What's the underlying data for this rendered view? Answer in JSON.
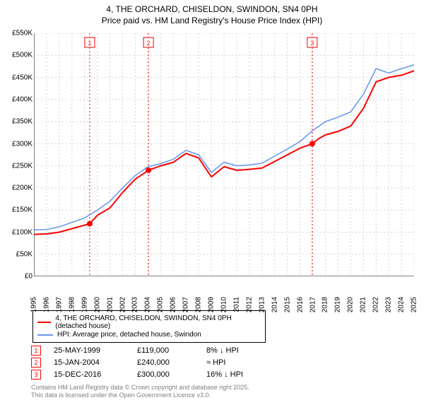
{
  "title": {
    "line1": "4, THE ORCHARD, CHISELDON, SWINDON, SN4 0PH",
    "line2": "Price paid vs. HM Land Registry's House Price Index (HPI)"
  },
  "chart": {
    "type": "line",
    "background_color": "#ffffff",
    "grid_color": "#d3d3d3",
    "grid_dash": "2,3",
    "axis_color": "#000000",
    "label_fontsize": 10,
    "x": {
      "min": 1995,
      "max": 2025,
      "tick_step": 1,
      "ticks": [
        1995,
        1996,
        1997,
        1998,
        1999,
        2000,
        2001,
        2002,
        2003,
        2004,
        2005,
        2006,
        2007,
        2008,
        2009,
        2010,
        2011,
        2012,
        2013,
        2014,
        2015,
        2016,
        2017,
        2018,
        2019,
        2020,
        2021,
        2022,
        2023,
        2024,
        2025
      ]
    },
    "y": {
      "min": 0,
      "max": 550,
      "tick_step": 50,
      "unit_suffix": "K",
      "unit_prefix": "£",
      "ticks": [
        0,
        50,
        100,
        150,
        200,
        250,
        300,
        350,
        400,
        450,
        500,
        550
      ]
    },
    "series": [
      {
        "name": "price_paid",
        "label": "4, THE ORCHARD, CHISELDON, SWINDON, SN4 0PH (detached house)",
        "color": "#ff0000",
        "line_width": 2,
        "points": [
          [
            1995,
            95
          ],
          [
            1996,
            96
          ],
          [
            1997,
            100
          ],
          [
            1998,
            108
          ],
          [
            1999.4,
            119
          ],
          [
            2000,
            138
          ],
          [
            2001,
            155
          ],
          [
            2002,
            190
          ],
          [
            2003,
            220
          ],
          [
            2004.04,
            240
          ],
          [
            2005,
            250
          ],
          [
            2006,
            258
          ],
          [
            2007,
            278
          ],
          [
            2008,
            268
          ],
          [
            2009,
            225
          ],
          [
            2010,
            248
          ],
          [
            2011,
            240
          ],
          [
            2012,
            242
          ],
          [
            2013,
            245
          ],
          [
            2014,
            260
          ],
          [
            2015,
            275
          ],
          [
            2016,
            290
          ],
          [
            2016.96,
            300
          ],
          [
            2017.5,
            312
          ],
          [
            2018,
            320
          ],
          [
            2019,
            328
          ],
          [
            2020,
            340
          ],
          [
            2021,
            380
          ],
          [
            2022,
            440
          ],
          [
            2023,
            450
          ],
          [
            2024,
            455
          ],
          [
            2025,
            465
          ]
        ]
      },
      {
        "name": "hpi",
        "label": "HPI: Average price, detached house, Swindon",
        "color": "#6495ed",
        "line_width": 1.5,
        "points": [
          [
            1995,
            105
          ],
          [
            1996,
            106
          ],
          [
            1997,
            112
          ],
          [
            1998,
            122
          ],
          [
            1999,
            132
          ],
          [
            2000,
            150
          ],
          [
            2001,
            170
          ],
          [
            2002,
            200
          ],
          [
            2003,
            228
          ],
          [
            2004,
            248
          ],
          [
            2005,
            255
          ],
          [
            2006,
            265
          ],
          [
            2007,
            285
          ],
          [
            2008,
            275
          ],
          [
            2009,
            235
          ],
          [
            2010,
            258
          ],
          [
            2011,
            250
          ],
          [
            2012,
            252
          ],
          [
            2013,
            256
          ],
          [
            2014,
            272
          ],
          [
            2015,
            288
          ],
          [
            2016,
            305
          ],
          [
            2017,
            330
          ],
          [
            2018,
            350
          ],
          [
            2019,
            360
          ],
          [
            2020,
            372
          ],
          [
            2021,
            412
          ],
          [
            2022,
            470
          ],
          [
            2023,
            460
          ],
          [
            2024,
            470
          ],
          [
            2025,
            478
          ]
        ]
      }
    ],
    "sale_markers": [
      {
        "n": "1",
        "x": 1999.4,
        "y": 119,
        "dot_r": 4
      },
      {
        "n": "2",
        "x": 2004.04,
        "y": 240,
        "dot_r": 4
      },
      {
        "n": "3",
        "x": 2016.96,
        "y": 300,
        "dot_r": 4
      }
    ],
    "marker_line_color": "#ff0000",
    "marker_line_dash": "2,3",
    "marker_box_border": "#ff0000",
    "marker_box_text": "#ff0000",
    "dot_color": "#ff0000"
  },
  "legend": {
    "rows": [
      {
        "color": "#ff0000",
        "text": "4, THE ORCHARD, CHISELDON, SWINDON, SN4 0PH (detached house)"
      },
      {
        "color": "#6495ed",
        "text": "HPI: Average price, detached house, Swindon"
      }
    ]
  },
  "sales": [
    {
      "n": "1",
      "date": "25-MAY-1999",
      "price": "£119,000",
      "delta": "8% ↓ HPI"
    },
    {
      "n": "2",
      "date": "15-JAN-2004",
      "price": "£240,000",
      "delta": "≈ HPI"
    },
    {
      "n": "3",
      "date": "15-DEC-2016",
      "price": "£300,000",
      "delta": "16% ↓ HPI"
    }
  ],
  "footer": {
    "line1": "Contains HM Land Registry data © Crown copyright and database right 2025.",
    "line2": "This data is licensed under the Open Government Licence v3.0."
  }
}
